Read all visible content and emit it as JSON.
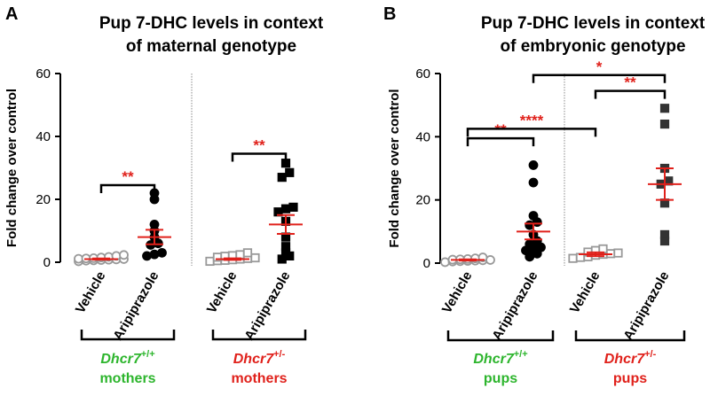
{
  "chart_data": [
    {
      "panel_label": "A",
      "type": "scatter",
      "title_lines": [
        "Pup 7-DHC levels in context",
        "of maternal genotype"
      ],
      "ylabel": "Fold change over control",
      "ylim": [
        0,
        60
      ],
      "yticks": [
        "0",
        "20",
        "40",
        "60"
      ],
      "categories": [
        "Vehicle",
        "Aripiprazole",
        "Vehicle",
        "Aripiprazole"
      ],
      "groups": [
        {
          "label": "Vehicle",
          "marker": "circle",
          "filled": false,
          "color": "#999999",
          "values": [
            0.3,
            0.5,
            0.6,
            0.7,
            0.8,
            0.9,
            1.0,
            1.1,
            1.2,
            1.3,
            1.5,
            1.7,
            2.0,
            2.3
          ],
          "mean": 1.0,
          "sem": 0.2
        },
        {
          "label": "Aripiprazole",
          "marker": "circle",
          "filled": true,
          "color": "#000000",
          "values": [
            2.0,
            2.5,
            3.0,
            5.5,
            6.0,
            8.0,
            10.0,
            12.0,
            20.0,
            22.0
          ],
          "mean": 8.0,
          "sem": 2.3
        },
        {
          "label": "Vehicle",
          "marker": "square",
          "filled": false,
          "color": "#999999",
          "values": [
            0.3,
            0.5,
            0.6,
            0.8,
            1.0,
            1.2,
            1.4,
            1.6,
            1.9,
            2.1,
            2.4,
            3.0
          ],
          "mean": 1.0,
          "sem": 0.25
        },
        {
          "label": "Aripiprazole",
          "marker": "square",
          "filled": true,
          "color": "#000000",
          "values": [
            1.0,
            2.0,
            3.0,
            5.0,
            8.0,
            13.0,
            16.0,
            17.0,
            17.5,
            27.0,
            28.5,
            31.5
          ],
          "mean": 12.0,
          "sem": 3.0
        }
      ],
      "significance": [
        {
          "from": 1,
          "to": 2,
          "y": 24.5,
          "label": "**"
        },
        {
          "from": 3,
          "to": 4,
          "y": 34.5,
          "label": "**"
        }
      ],
      "brackets": [
        {
          "from": 1,
          "to": 2,
          "lines": [
            {
              "text": "Dhcr7",
              "sup": "+/+",
              "italic": true
            },
            {
              "text": "mothers"
            }
          ],
          "color": "#2db52d"
        },
        {
          "from": 3,
          "to": 4,
          "lines": [
            {
              "text": "Dhcr7",
              "sup": "+/-",
              "italic": true
            },
            {
              "text": "mothers"
            }
          ],
          "color": "#e0211b"
        }
      ]
    },
    {
      "panel_label": "B",
      "type": "scatter",
      "title_lines": [
        "Pup 7-DHC levels in context",
        "of embryonic genotype"
      ],
      "ylabel": "Fold change over control",
      "ylim": [
        0,
        60
      ],
      "yticks": [
        "0",
        "20",
        "40",
        "60"
      ],
      "categories": [
        "Vehicle",
        "Aripiprazole",
        "Vehicle",
        "Aripiprazole"
      ],
      "groups": [
        {
          "label": "Vehicle",
          "marker": "circle",
          "filled": false,
          "color": "#999999",
          "values": [
            0.3,
            0.5,
            0.6,
            0.7,
            0.8,
            0.9,
            1.0,
            1.1,
            1.2,
            1.3,
            1.5,
            1.8
          ],
          "mean": 1.0,
          "sem": 0.2
        },
        {
          "label": "Aripiprazole",
          "marker": "circle",
          "filled": true,
          "color": "#000000",
          "values": [
            2.0,
            3.0,
            4.0,
            4.5,
            5.0,
            6.0,
            7.0,
            9.0,
            12.0,
            13.0,
            15.0,
            25.5,
            31.0
          ],
          "mean": 10.0,
          "sem": 2.5
        },
        {
          "label": "Vehicle",
          "marker": "square",
          "filled": false,
          "color": "#999999",
          "values": [
            1.5,
            1.8,
            2.0,
            2.5,
            2.8,
            3.0,
            3.2,
            3.5,
            4.0,
            4.5
          ],
          "mean": 2.8,
          "sem": 0.6
        },
        {
          "label": "Aripiprazole",
          "marker": "square",
          "filled": true,
          "color": "#333333",
          "values": [
            7.0,
            9.0,
            19.0,
            25.0,
            26.0,
            30.0,
            44.0,
            49.0
          ],
          "mean": 25.0,
          "sem": 5.0
        }
      ],
      "significance": [
        {
          "from": 1,
          "to": 2,
          "y": 39.5,
          "label": "**"
        },
        {
          "from": 1,
          "to": 3,
          "y": 42.5,
          "label": "****"
        },
        {
          "from": 2,
          "to": 4,
          "y": 59.5,
          "label": "*"
        },
        {
          "from": 3,
          "to": 4,
          "y": 54.5,
          "label": "**"
        }
      ],
      "brackets": [
        {
          "from": 1,
          "to": 2,
          "lines": [
            {
              "text": "Dhcr7",
              "sup": "+/+",
              "italic": true
            },
            {
              "text": "pups"
            }
          ],
          "color": "#2db52d"
        },
        {
          "from": 3,
          "to": 4,
          "lines": [
            {
              "text": "Dhcr7",
              "sup": "+/-",
              "italic": true
            },
            {
              "text": "pups"
            }
          ],
          "color": "#e0211b"
        }
      ]
    }
  ],
  "colors": {
    "axis": "#000000",
    "mean_bar": "#e0211b",
    "significance": "#e0211b",
    "divider": "#888888"
  }
}
